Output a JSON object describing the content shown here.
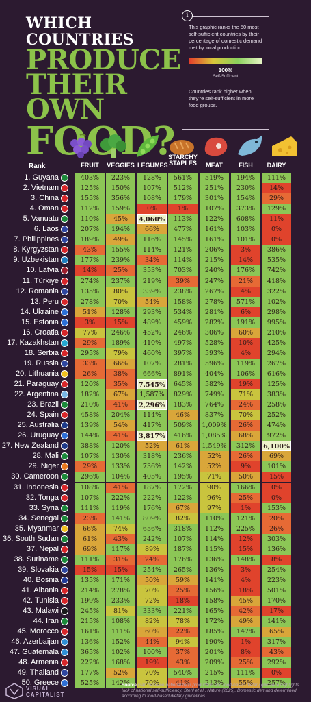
{
  "title": {
    "line1": "WHICH COUNTRIES",
    "line2": "PRODUCE",
    "line3": "THEIR OWN",
    "line4": "FOOD?"
  },
  "info": {
    "icon": "i",
    "paragraph1": "This graphic ranks the 50 most self-sufficient countries by their percentage of domestic demand met by local production.",
    "gradient_label": "100%",
    "gradient_sublabel": "Self-Sufficient",
    "paragraph2": "Countries rank higher when they're self-sufficient in more food groups.",
    "gradient_colors": [
      "#e53a2a",
      "#d9c73a",
      "#8bd15d",
      "#e8f5c7"
    ]
  },
  "footer": {
    "brand_line1": "VISUAL",
    "brand_line2": "CAPITALIST",
    "source_label": "Source",
    "source_text": "Gap between national food production and food-based dietary guidance highlights lack of national self-sufficiency, Stehl et al., Nature (2025). Domestic demand determined according to food-based dietary guidelines."
  },
  "chart_data": {
    "type": "table",
    "rank_header": "Rank",
    "columns": [
      "FRUIT",
      "VEGGIES",
      "LEGUMES",
      "STARCHY STAPLES",
      "MEAT",
      "FISH",
      "DAIRY"
    ],
    "column_icons": [
      "grapes-icon",
      "broccoli-icon",
      "pea-pod-icon",
      "bread-icon",
      "meat-steak-icon",
      "fish-icon",
      "cheese-icon"
    ],
    "rows": [
      {
        "rank": "1. Guyana",
        "values": [
          "403%",
          "223%",
          "128%",
          "561%",
          "519%",
          "194%",
          "111%"
        ]
      },
      {
        "rank": "2. Vietnam",
        "values": [
          "125%",
          "150%",
          "107%",
          "512%",
          "251%",
          "230%",
          "14%"
        ]
      },
      {
        "rank": "3. China",
        "values": [
          "155%",
          "356%",
          "108%",
          "179%",
          "301%",
          "154%",
          "29%"
        ]
      },
      {
        "rank": "4. Oman",
        "values": [
          "112%",
          "159%",
          "0%",
          "1%",
          "107%",
          "373%",
          "129%"
        ]
      },
      {
        "rank": "5. Vanuatu",
        "values": [
          "110%",
          "45%",
          "4,060%",
          "113%",
          "122%",
          "608%",
          "11%"
        ]
      },
      {
        "rank": "6. Laos",
        "values": [
          "207%",
          "194%",
          "66%",
          "477%",
          "161%",
          "103%",
          "0%"
        ]
      },
      {
        "rank": "7. Philippines",
        "values": [
          "189%",
          "49%",
          "116%",
          "145%",
          "161%",
          "101%",
          "0%"
        ]
      },
      {
        "rank": "8. Kyrgyzstan",
        "values": [
          "43%",
          "155%",
          "114%",
          "121%",
          "206%",
          "3%",
          "386%"
        ]
      },
      {
        "rank": "9. Uzbekistan",
        "values": [
          "177%",
          "239%",
          "34%",
          "114%",
          "215%",
          "14%",
          "535%"
        ]
      },
      {
        "rank": "10. Latvia",
        "values": [
          "14%",
          "25%",
          "353%",
          "703%",
          "240%",
          "176%",
          "742%"
        ]
      },
      {
        "rank": "11. Türkiye",
        "values": [
          "274%",
          "237%",
          "219%",
          "39%",
          "247%",
          "21%",
          "418%"
        ]
      },
      {
        "rank": "12. Romania",
        "values": [
          "135%",
          "80%",
          "339%",
          "238%",
          "267%",
          "4%",
          "322%"
        ]
      },
      {
        "rank": "13. Peru",
        "values": [
          "278%",
          "70%",
          "54%",
          "158%",
          "278%",
          "571%",
          "102%"
        ]
      },
      {
        "rank": "14. Ukraine",
        "values": [
          "51%",
          "128%",
          "293%",
          "534%",
          "281%",
          "6%",
          "298%"
        ]
      },
      {
        "rank": "15. Estonia",
        "values": [
          "3%",
          "15%",
          "489%",
          "459%",
          "282%",
          "191%",
          "995%"
        ]
      },
      {
        "rank": "16. Croatia",
        "values": [
          "77%",
          "246%",
          "452%",
          "246%",
          "306%",
          "60%",
          "210%"
        ]
      },
      {
        "rank": "17. Kazakhstan",
        "values": [
          "29%",
          "189%",
          "410%",
          "497%",
          "528%",
          "10%",
          "425%"
        ]
      },
      {
        "rank": "18. Serbia",
        "values": [
          "295%",
          "79%",
          "460%",
          "397%",
          "593%",
          "4%",
          "294%"
        ]
      },
      {
        "rank": "19. Russia",
        "values": [
          "33%",
          "66%",
          "107%",
          "281%",
          "596%",
          "119%",
          "267%"
        ]
      },
      {
        "rank": "20. Lithuania",
        "values": [
          "26%",
          "38%",
          "666%",
          "891%",
          "404%",
          "106%",
          "616%"
        ]
      },
      {
        "rank": "21. Paraguay",
        "values": [
          "120%",
          "35%",
          "7,545%",
          "645%",
          "582%",
          "19%",
          "125%"
        ]
      },
      {
        "rank": "22. Argentina",
        "values": [
          "182%",
          "67%",
          "1,587%",
          "829%",
          "749%",
          "71%",
          "383%"
        ]
      },
      {
        "rank": "23. Brazil",
        "values": [
          "210%",
          "41%",
          "2,296%",
          "183%",
          "764%",
          "24%",
          "258%"
        ]
      },
      {
        "rank": "24. Spain",
        "values": [
          "458%",
          "204%",
          "114%",
          "46%",
          "837%",
          "70%",
          "252%"
        ]
      },
      {
        "rank": "25. Australia",
        "values": [
          "139%",
          "54%",
          "417%",
          "509%",
          "1,009%",
          "26%",
          "474%"
        ]
      },
      {
        "rank": "26. Uruguay",
        "values": [
          "144%",
          "41%",
          "3,817%",
          "416%",
          "1,085%",
          "68%",
          "972%"
        ]
      },
      {
        "rank": "27. New Zealand",
        "values": [
          "388%",
          "120%",
          "52%",
          "61%",
          "1,549%",
          "312%",
          "6,100%"
        ]
      },
      {
        "rank": "28. Mali",
        "values": [
          "107%",
          "130%",
          "318%",
          "236%",
          "52%",
          "26%",
          "69%"
        ]
      },
      {
        "rank": "29. Niger",
        "values": [
          "29%",
          "133%",
          "736%",
          "142%",
          "52%",
          "9%",
          "101%"
        ]
      },
      {
        "rank": "30. Cameroon",
        "values": [
          "296%",
          "104%",
          "405%",
          "195%",
          "71%",
          "50%",
          "15%"
        ]
      },
      {
        "rank": "31. Indonesia",
        "values": [
          "108%",
          "41%",
          "187%",
          "172%",
          "90%",
          "166%",
          "0%"
        ]
      },
      {
        "rank": "32. Tonga",
        "values": [
          "107%",
          "222%",
          "222%",
          "122%",
          "96%",
          "25%",
          "0%"
        ]
      },
      {
        "rank": "33. Syria",
        "values": [
          "111%",
          "119%",
          "176%",
          "67%",
          "97%",
          "1%",
          "153%"
        ]
      },
      {
        "rank": "34. Senegal",
        "values": [
          "23%",
          "141%",
          "809%",
          "82%",
          "110%",
          "121%",
          "20%"
        ]
      },
      {
        "rank": "35. Myanmar",
        "values": [
          "66%",
          "74%",
          "656%",
          "318%",
          "112%",
          "225%",
          "26%"
        ]
      },
      {
        "rank": "36. South Sudan",
        "values": [
          "61%",
          "43%",
          "242%",
          "107%",
          "114%",
          "12%",
          "303%"
        ]
      },
      {
        "rank": "37. Nepal",
        "values": [
          "69%",
          "117%",
          "89%",
          "187%",
          "115%",
          "15%",
          "136%"
        ]
      },
      {
        "rank": "38. Suriname",
        "values": [
          "111%",
          "31%",
          "24%",
          "176%",
          "136%",
          "148%",
          "8%"
        ]
      },
      {
        "rank": "39. Slovakia",
        "values": [
          "15%",
          "15%",
          "254%",
          "265%",
          "136%",
          "3%",
          "254%"
        ]
      },
      {
        "rank": "40. Bosnia",
        "values": [
          "135%",
          "171%",
          "50%",
          "59%",
          "141%",
          "4%",
          "223%"
        ]
      },
      {
        "rank": "41. Albania",
        "values": [
          "214%",
          "278%",
          "70%",
          "25%",
          "156%",
          "18%",
          "501%"
        ]
      },
      {
        "rank": "42. Tunisia",
        "values": [
          "199%",
          "233%",
          "72%",
          "18%",
          "158%",
          "45%",
          "170%"
        ]
      },
      {
        "rank": "43. Malawi",
        "values": [
          "245%",
          "81%",
          "333%",
          "221%",
          "165%",
          "42%",
          "17%"
        ]
      },
      {
        "rank": "44. Iran",
        "values": [
          "215%",
          "108%",
          "82%",
          "78%",
          "172%",
          "49%",
          "141%"
        ]
      },
      {
        "rank": "45. Morocco",
        "values": [
          "161%",
          "111%",
          "60%",
          "22%",
          "185%",
          "147%",
          "65%"
        ]
      },
      {
        "rank": "46. Azerbaijan",
        "values": [
          "136%",
          "152%",
          "44%",
          "94%",
          "190%",
          "1%",
          "317%"
        ]
      },
      {
        "rank": "47. Guatemala",
        "values": [
          "365%",
          "102%",
          "100%",
          "37%",
          "201%",
          "8%",
          "43%"
        ]
      },
      {
        "rank": "48. Armenia",
        "values": [
          "222%",
          "168%",
          "19%",
          "43%",
          "209%",
          "25%",
          "292%"
        ]
      },
      {
        "rank": "49. Thailand",
        "values": [
          "177%",
          "52%",
          "70%",
          "540%",
          "215%",
          "111%",
          "0%"
        ]
      },
      {
        "rank": "50. Greece",
        "values": [
          "525%",
          "142%",
          "70%",
          "41%",
          "213%",
          "55%",
          "257%"
        ]
      }
    ],
    "flag_colors": [
      "#1b8a3a",
      "#d8262a",
      "#d8262a",
      "#d8262a",
      "#1b8a3a",
      "#2f46a0",
      "#2f46a0",
      "#d8262a",
      "#1f7fc0",
      "#9e1f2e",
      "#d8262a",
      "#2f46a0",
      "#d8262a",
      "#2b6fd6",
      "#2b6fd6",
      "#d8262a",
      "#26a6d0",
      "#d8262a",
      "#2f46a0",
      "#f0c020",
      "#d8262a",
      "#7ab8e6",
      "#1b8a3a",
      "#d8262a",
      "#1e3a8a",
      "#2f6fd6",
      "#1e3a8a",
      "#1b8a3a",
      "#e87a1f",
      "#1b8a3a",
      "#d8262a",
      "#d8262a",
      "#1b8a3a",
      "#1b8a3a",
      "#f0c020",
      "#1b8a3a",
      "#d8262a",
      "#1b8a3a",
      "#2f46a0",
      "#1f3a9a",
      "#d8262a",
      "#d8262a",
      "#1a1a1a",
      "#1b8a3a",
      "#d8262a",
      "#2f8fd6",
      "#2f8fd6",
      "#d8262a",
      "#2f46a0",
      "#2f6fd6"
    ]
  }
}
